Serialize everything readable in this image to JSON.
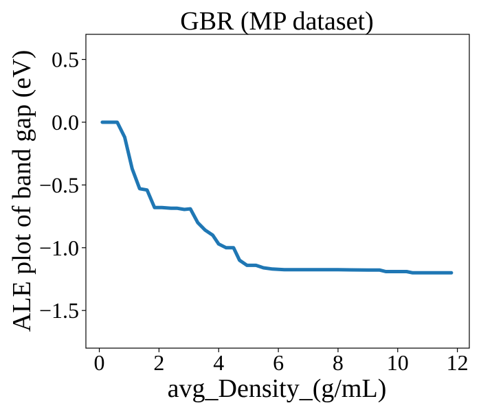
{
  "chart_data": {
    "type": "line",
    "title": "GBR (MP dataset)",
    "xlabel": "avg_Density_(g/mL)",
    "ylabel": "ALE plot of band gap (eV)",
    "xlim": [
      -0.45,
      12.4
    ],
    "ylim": [
      -1.8,
      0.7
    ],
    "xticks": [
      0,
      2,
      4,
      6,
      8,
      10,
      12
    ],
    "yticks": [
      0.5,
      0.0,
      -0.5,
      -1.0,
      -1.5
    ],
    "xtick_labels": [
      "0",
      "2",
      "4",
      "6",
      "8",
      "10",
      "12"
    ],
    "ytick_labels": [
      "0.5",
      "0.0",
      "−0.5",
      "−1.0",
      "−1.5"
    ],
    "grid": false,
    "series": [
      {
        "color": "#1f77b4",
        "x": [
          0.1,
          0.6,
          0.85,
          1.1,
          1.35,
          1.6,
          1.85,
          2.1,
          2.4,
          2.6,
          2.85,
          3.05,
          3.3,
          3.55,
          3.8,
          4.0,
          4.25,
          4.5,
          4.7,
          4.95,
          5.25,
          5.5,
          5.8,
          6.2,
          7.0,
          8.0,
          9.0,
          9.4,
          9.6,
          10.3,
          10.5,
          11.8
        ],
        "y": [
          0.0,
          0.0,
          -0.12,
          -0.37,
          -0.53,
          -0.54,
          -0.68,
          -0.68,
          -0.685,
          -0.685,
          -0.695,
          -0.69,
          -0.8,
          -0.86,
          -0.9,
          -0.97,
          -1.0,
          -1.0,
          -1.1,
          -1.14,
          -1.14,
          -1.16,
          -1.17,
          -1.175,
          -1.175,
          -1.175,
          -1.178,
          -1.178,
          -1.19,
          -1.19,
          -1.2,
          -1.2
        ]
      }
    ]
  }
}
